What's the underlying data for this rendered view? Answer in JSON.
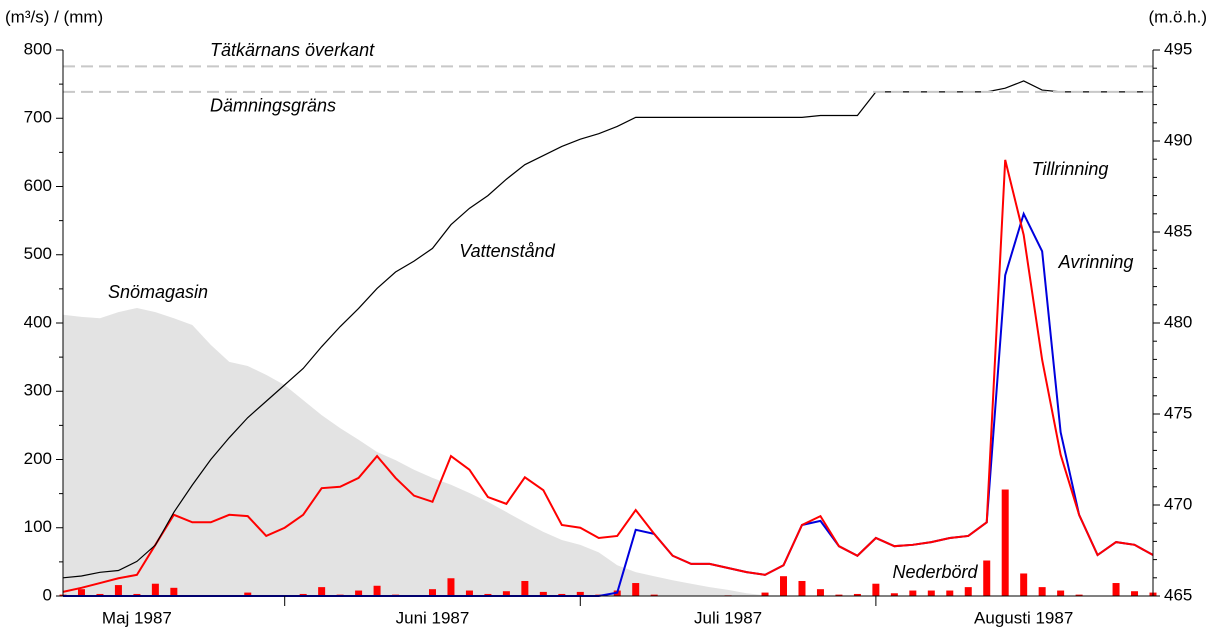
{
  "chart_data": {
    "type": "line",
    "y_label": "(m³/s) / (mm)",
    "y2_label": "(m.ö.h.)",
    "ylim": [
      0,
      800
    ],
    "yticks": [
      0,
      100,
      200,
      300,
      400,
      500,
      600,
      700,
      800
    ],
    "y2lim": [
      465,
      495
    ],
    "y2ticks": [
      465,
      470,
      475,
      480,
      485,
      490,
      495
    ],
    "categories": [
      null,
      null,
      null,
      null,
      "Maj 1987",
      null,
      null,
      null,
      null,
      null,
      null,
      null,
      null,
      null,
      null,
      null,
      null,
      null,
      null,
      null,
      "Juni 1987",
      null,
      null,
      null,
      null,
      null,
      null,
      null,
      null,
      null,
      null,
      null,
      null,
      null,
      null,
      null,
      "Juli 1987",
      null,
      null,
      null,
      null,
      null,
      null,
      null,
      null,
      null,
      null,
      null,
      null,
      null,
      null,
      null,
      "Augusti 1987",
      null,
      null,
      null,
      null,
      null,
      null,
      null
    ],
    "reference_lines": [
      {
        "label": "Tätkärnans överkant",
        "value": 494.1,
        "axis": "y2",
        "color": "#c8c8c8"
      },
      {
        "label": "Dämningsgräns",
        "value": 492.7,
        "axis": "y2",
        "color": "#c8c8c8"
      }
    ],
    "series": [
      {
        "name": "Snömagasin",
        "type": "area",
        "color": "#e3e3e3",
        "label_color": "#999999",
        "values": [
          412,
          409,
          407,
          416,
          422,
          416,
          407,
          397,
          368,
          343,
          337,
          324,
          309,
          287,
          265,
          246,
          229,
          211,
          199,
          185,
          173,
          163,
          151,
          138,
          123,
          108,
          94,
          82,
          75,
          64,
          45,
          35,
          29,
          23,
          18,
          13,
          9,
          4,
          1,
          0,
          0,
          0,
          0,
          0,
          0,
          0,
          0,
          0,
          0,
          0,
          0,
          0,
          0,
          0,
          0,
          0,
          0,
          0,
          0,
          0
        ]
      },
      {
        "name": "Nederbörd",
        "type": "bar",
        "color": "#ff0000",
        "label_color": "#ff0000",
        "values": [
          2,
          10,
          3,
          16,
          3,
          18,
          12,
          0,
          0,
          0,
          5,
          0,
          0,
          3,
          13,
          2,
          8,
          15,
          2,
          1,
          10,
          26,
          8,
          3,
          7,
          22,
          6,
          3,
          6,
          2,
          8,
          19,
          2,
          0,
          0,
          0,
          1,
          0,
          5,
          29,
          22,
          10,
          2,
          3,
          18,
          4,
          8,
          8,
          8,
          13,
          52,
          156,
          33,
          13,
          8,
          2,
          0,
          19,
          7,
          5
        ]
      },
      {
        "name": "Avrinning",
        "type": "line",
        "color": "#0000dd",
        "label_color": "#0000dd",
        "values": [
          0,
          0,
          0,
          0,
          0,
          0,
          0,
          0,
          0,
          0,
          0,
          0,
          0,
          0,
          0,
          0,
          0,
          0,
          0,
          0,
          0,
          0,
          0,
          0,
          0,
          0,
          0,
          0,
          0,
          0,
          5,
          97,
          91,
          59,
          47,
          47,
          41,
          35,
          31,
          45,
          104,
          110,
          73,
          59,
          85,
          73,
          75,
          79,
          85,
          88,
          108,
          470,
          560,
          505,
          240,
          119,
          60,
          79,
          75,
          60
        ]
      },
      {
        "name": "Tillrinning",
        "type": "line",
        "color": "#ff0000",
        "label_color": "#ff0000",
        "values": [
          6,
          12,
          19,
          26,
          31,
          75,
          119,
          108,
          108,
          119,
          117,
          88,
          100,
          119,
          158,
          160,
          173,
          205,
          173,
          147,
          138,
          205,
          185,
          145,
          135,
          174,
          155,
          104,
          100,
          85,
          88,
          126,
          91,
          59,
          47,
          47,
          41,
          35,
          31,
          45,
          104,
          117,
          73,
          59,
          85,
          73,
          75,
          79,
          85,
          88,
          108,
          639,
          529,
          346,
          207,
          119,
          60,
          79,
          75,
          60
        ]
      },
      {
        "name": "Vattenstånd",
        "type": "line",
        "axis": "y2",
        "color": "#000000",
        "label_color": "#000000",
        "values": [
          466.0,
          466.1,
          466.3,
          466.4,
          466.9,
          467.8,
          469.6,
          471.1,
          472.5,
          473.7,
          474.8,
          475.7,
          476.6,
          477.5,
          478.7,
          479.8,
          480.8,
          481.9,
          482.8,
          483.4,
          484.1,
          485.4,
          486.3,
          487.0,
          487.9,
          488.7,
          489.2,
          489.7,
          490.1,
          490.4,
          490.8,
          491.3,
          491.3,
          491.3,
          491.3,
          491.3,
          491.3,
          491.3,
          491.3,
          491.3,
          491.3,
          491.4,
          491.4,
          491.4,
          492.7,
          492.7,
          492.7,
          492.7,
          492.7,
          492.7,
          492.7,
          492.9,
          493.3,
          492.8,
          492.7,
          492.7,
          492.7,
          492.7,
          492.7,
          492.7
        ]
      }
    ]
  }
}
